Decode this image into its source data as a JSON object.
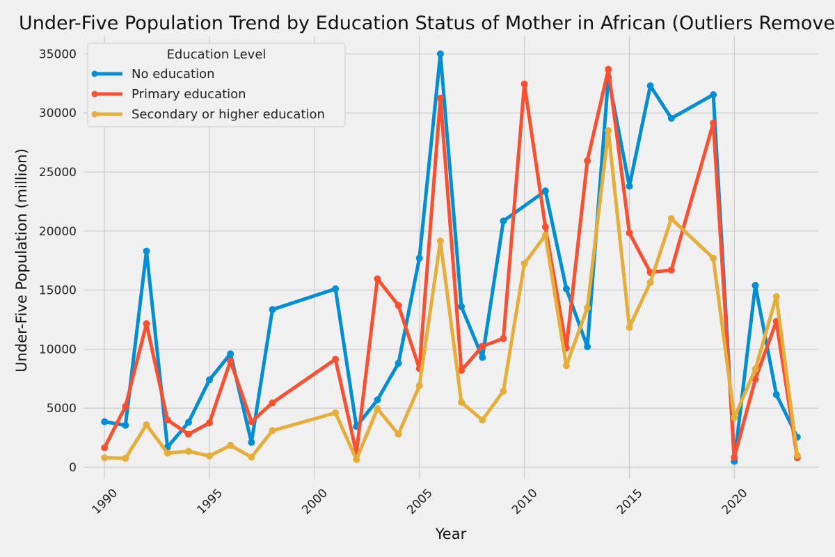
{
  "chart_data": {
    "type": "line",
    "title": "Under-Five Population Trend by Education Status of Mother in African (Outliers Removed)",
    "xlabel": "Year",
    "ylabel": "Under-Five Population (million)",
    "xlim": [
      1989,
      2024
    ],
    "ylim": [
      -1000,
      36500
    ],
    "xticks": [
      1990,
      1995,
      2000,
      2005,
      2010,
      2015,
      2020
    ],
    "yticks": [
      0,
      5000,
      10000,
      15000,
      20000,
      25000,
      30000,
      35000
    ],
    "grid": true,
    "legend": {
      "title": "Education Level",
      "placement": "top-left"
    },
    "series": [
      {
        "name": "No education",
        "color": "#008fd5",
        "x": [
          1990,
          1991,
          1992,
          1993,
          1994,
          1995,
          1996,
          1997,
          1998,
          2001,
          2002,
          2003,
          2004,
          2005,
          2006,
          2007,
          2008,
          2009,
          2011,
          2012,
          2013,
          2014,
          2015,
          2016,
          2017,
          2019,
          2020,
          2021,
          2022,
          2023
        ],
        "values": [
          3850,
          3550,
          18300,
          1700,
          3800,
          7400,
          9600,
          2100,
          13350,
          15100,
          3450,
          5700,
          8800,
          17700,
          35000,
          13600,
          9300,
          20850,
          23400,
          15100,
          10200,
          33000,
          23800,
          32300,
          29550,
          31550,
          500,
          15400,
          6150,
          2550
        ]
      },
      {
        "name": "Primary education",
        "color": "#fc4f30",
        "x": [
          1990,
          1991,
          1992,
          1993,
          1994,
          1995,
          1996,
          1997,
          1998,
          2001,
          2002,
          2003,
          2004,
          2005,
          2006,
          2007,
          2008,
          2009,
          2010,
          2011,
          2012,
          2013,
          2014,
          2015,
          2016,
          2017,
          2019,
          2020,
          2021,
          2022,
          2023
        ],
        "values": [
          1650,
          5150,
          12150,
          4000,
          2800,
          3750,
          9000,
          3850,
          5450,
          9150,
          1200,
          15950,
          13700,
          8350,
          31250,
          8200,
          10250,
          10900,
          32450,
          20350,
          10100,
          25950,
          33700,
          19850,
          16500,
          16700,
          29150,
          850,
          7450,
          12350,
          800
        ]
      },
      {
        "name": "Secondary or higher education",
        "color": "#e5ae38",
        "x": [
          1990,
          1991,
          1992,
          1993,
          1994,
          1995,
          1996,
          1997,
          1998,
          2001,
          2002,
          2003,
          2004,
          2005,
          2006,
          2007,
          2008,
          2009,
          2010,
          2011,
          2012,
          2013,
          2014,
          2015,
          2016,
          2017,
          2019,
          2020,
          2021,
          2022,
          2023
        ],
        "values": [
          800,
          750,
          3600,
          1200,
          1350,
          950,
          1850,
          850,
          3100,
          4600,
          650,
          4950,
          2800,
          6900,
          19150,
          5500,
          4000,
          6450,
          17250,
          19650,
          8600,
          13500,
          28500,
          11850,
          15650,
          21050,
          17700,
          4200,
          8300,
          14450,
          1000
        ]
      }
    ]
  }
}
